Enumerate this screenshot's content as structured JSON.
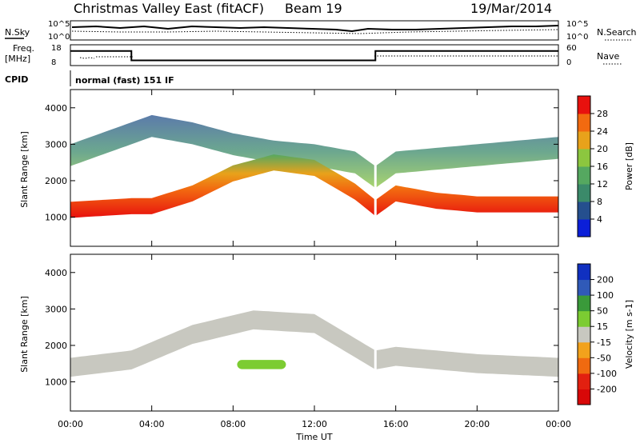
{
  "header": {
    "station": "Christmas Valley East (fitACF)",
    "beam": "Beam 19",
    "date": "19/Mar/2014"
  },
  "noise_panel": {
    "left_label": "N.Sky",
    "left_ticks": [
      "10^5",
      "10^0"
    ],
    "right_label": "N.Search",
    "right_ticks": [
      "10^5",
      "10^0"
    ]
  },
  "freq_panel": {
    "left_label_1": "Freq.",
    "left_label_2": "[MHz]",
    "left_ticks": [
      "18",
      "8"
    ],
    "right_label": "Nave",
    "right_ticks": [
      "60",
      "0"
    ]
  },
  "cpid": {
    "label": "CPID",
    "mode": "normal (fast) 151 IF"
  },
  "axes": {
    "ylabel": "Slant Range [km]",
    "xlabel": "Time UT",
    "x_ticks": [
      "00:00",
      "04:00",
      "08:00",
      "12:00",
      "16:00",
      "20:00",
      "00:00"
    ],
    "y_ticks": [
      "1000",
      "2000",
      "3000",
      "4000"
    ]
  },
  "power_scale": {
    "label": "Power [dB]",
    "ticks": [
      "4",
      "8",
      "12",
      "16",
      "20",
      "24",
      "28"
    ],
    "colors": [
      "#0b1fd8",
      "#254f8e",
      "#3b8a6a",
      "#55a860",
      "#8cc63f",
      "#e8a21b",
      "#f26a10",
      "#e8110e"
    ]
  },
  "velocity_scale": {
    "label": "Velocity [m s-1]",
    "ticks": [
      "200",
      "100",
      "50",
      "15",
      "-15",
      "-50",
      "-100",
      "-200"
    ],
    "colors": [
      "#1030c0",
      "#305ab8",
      "#3a9a3a",
      "#7ccc32",
      "#c8c8c0",
      "#f2a21c",
      "#f06a10",
      "#e22010",
      "#d80808"
    ]
  },
  "chart_data": {
    "type": "heatmap",
    "title": "Christmas Valley East (fitACF)",
    "xlabel": "Time UT",
    "ylabel": "Slant Range [km]",
    "xlim": [
      0,
      24
    ],
    "ylim": [
      200,
      4500
    ],
    "frequency_mhz": [
      {
        "x": [
          0,
          3
        ],
        "y": 15
      },
      {
        "x": [
          3,
          15
        ],
        "y": 10.5
      },
      {
        "x": [
          15,
          24
        ],
        "y": 15
      }
    ],
    "power_bands": [
      {
        "name": "low-range band",
        "x": [
          0,
          3,
          4,
          6,
          8,
          10,
          12,
          14,
          15,
          16,
          18,
          20,
          24
        ],
        "y": [
          1200,
          1300,
          1300,
          1650,
          2200,
          2500,
          2350,
          1700,
          1250,
          1650,
          1450,
          1350,
          1350
        ],
        "db": 26
      },
      {
        "name": "upper band",
        "x": [
          0,
          2,
          4,
          6,
          8,
          10,
          12,
          14,
          15,
          16,
          20,
          24
        ],
        "y": [
          2700,
          3100,
          3500,
          3300,
          3000,
          2800,
          2700,
          2500,
          2100,
          2500,
          2700,
          2900
        ],
        "db": 14
      }
    ],
    "velocity": [
      {
        "name": "ground-scatter band",
        "x": [
          0,
          3,
          6,
          9,
          12,
          15,
          16,
          20,
          24
        ],
        "y": [
          1400,
          1600,
          2300,
          2700,
          2600,
          1600,
          1700,
          1500,
          1400
        ],
        "v": 0
      },
      {
        "name": "positive patch",
        "x": [
          8.2,
          10.6
        ],
        "y": [
          1350,
          1600
        ],
        "v": 50
      }
    ]
  }
}
